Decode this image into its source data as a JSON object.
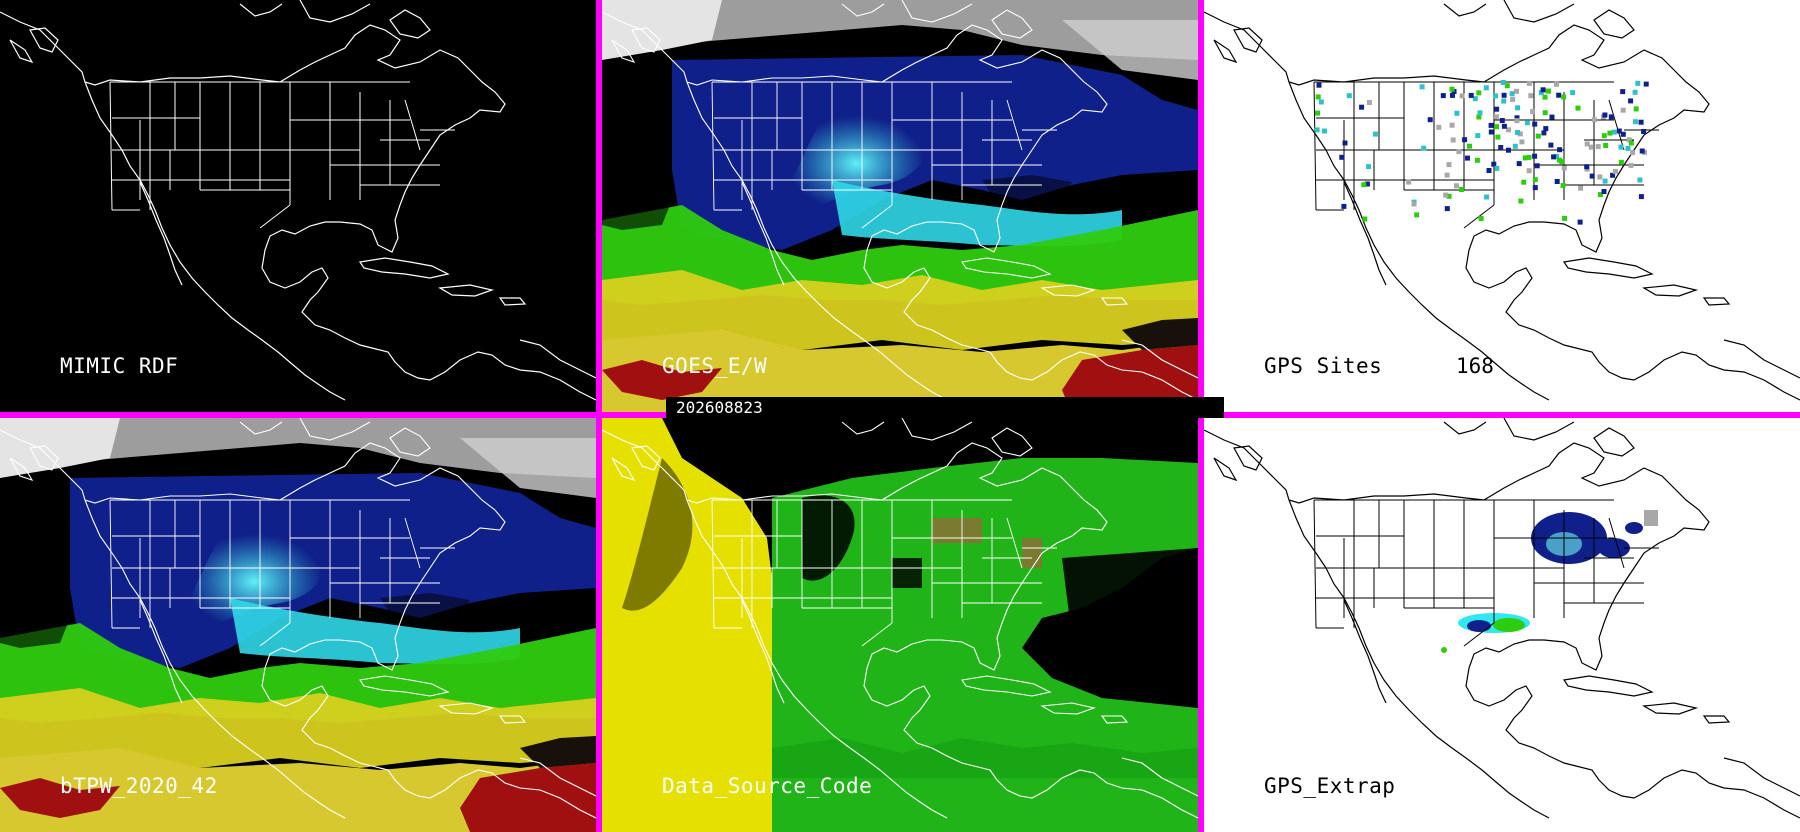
{
  "panels": {
    "mimic_rdf": {
      "label": "MIMIC RDF",
      "theme": "dark"
    },
    "goes_ew": {
      "label": "GOES_E/W",
      "theme": "color"
    },
    "gps_sites": {
      "label": "GPS Sites",
      "count": "168",
      "theme": "light"
    },
    "btpw": {
      "label": "bTPW_2020_42",
      "theme": "color"
    },
    "data_source_code": {
      "label": "Data_Source_Code",
      "theme": "color"
    },
    "gps_extrap": {
      "label": "GPS_Extrap",
      "theme": "light"
    }
  },
  "timestamp": "202608823",
  "colors": {
    "divider": "#ff00ff",
    "dark_background": "#000000",
    "light_background": "#ffffff",
    "very_dry": "#cfcfcf",
    "dry_blue": "#10208a",
    "moist_cyan": "#30e8f0",
    "moist_green": "#2ecc0f",
    "wet_yellow": "#d8d020",
    "very_wet_red": "#a01010",
    "source_yellow": "#e5e000",
    "source_green": "#20b418",
    "source_olive": "#7a7a30"
  }
}
